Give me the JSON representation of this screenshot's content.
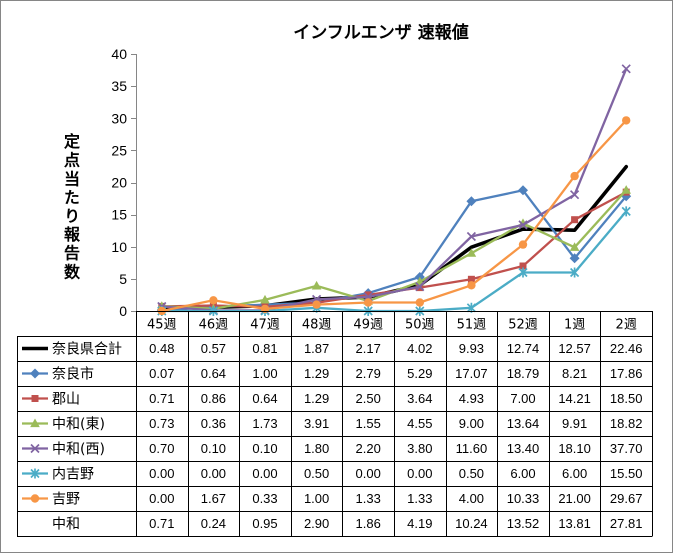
{
  "chart_data": {
    "type": "line",
    "title": "インフルエンザ 速報値",
    "xlabel": "",
    "ylabel": "定点当たり報告数",
    "categories": [
      "45週",
      "46週",
      "47週",
      "48週",
      "49週",
      "50週",
      "51週",
      "52週",
      "1週",
      "2週"
    ],
    "ylim": [
      0,
      40
    ],
    "yticks": [
      0,
      5,
      10,
      15,
      20,
      25,
      30,
      35,
      40
    ],
    "grid": false,
    "legend": "data-table",
    "series": [
      {
        "name": "奈良県合計",
        "color": "#000000",
        "marker": "none",
        "values": [
          0.48,
          0.57,
          0.81,
          1.87,
          2.17,
          4.02,
          9.93,
          12.74,
          12.57,
          22.46
        ]
      },
      {
        "name": "奈良市",
        "color": "#4F81BD",
        "marker": "diamond",
        "values": [
          0.07,
          0.64,
          1.0,
          1.29,
          2.79,
          5.29,
          17.07,
          18.79,
          8.21,
          17.86
        ]
      },
      {
        "name": "郡山",
        "color": "#C0504D",
        "marker": "square",
        "values": [
          0.71,
          0.86,
          0.64,
          1.29,
          2.5,
          3.64,
          4.93,
          7.0,
          14.21,
          18.5
        ]
      },
      {
        "name": "中和(東)",
        "color": "#9BBB59",
        "marker": "triangle",
        "values": [
          0.73,
          0.36,
          1.73,
          3.91,
          1.55,
          4.55,
          9.0,
          13.64,
          9.91,
          18.82
        ]
      },
      {
        "name": "中和(西)",
        "color": "#8064A2",
        "marker": "x",
        "values": [
          0.7,
          0.1,
          0.1,
          1.8,
          2.2,
          3.8,
          11.6,
          13.4,
          18.1,
          37.7
        ]
      },
      {
        "name": "内吉野",
        "color": "#4BACC6",
        "marker": "star",
        "values": [
          0.0,
          0.0,
          0.0,
          0.5,
          0.0,
          0.0,
          0.5,
          6.0,
          6.0,
          15.5
        ]
      },
      {
        "name": "吉野",
        "color": "#F79646",
        "marker": "circle",
        "values": [
          0.0,
          1.67,
          0.33,
          1.0,
          1.33,
          1.33,
          4.0,
          10.33,
          21.0,
          29.67
        ]
      },
      {
        "name": "中和",
        "color": null,
        "marker": "none",
        "values": [
          0.71,
          0.24,
          0.95,
          2.9,
          1.86,
          4.19,
          10.24,
          13.52,
          13.81,
          27.81
        ]
      }
    ]
  }
}
